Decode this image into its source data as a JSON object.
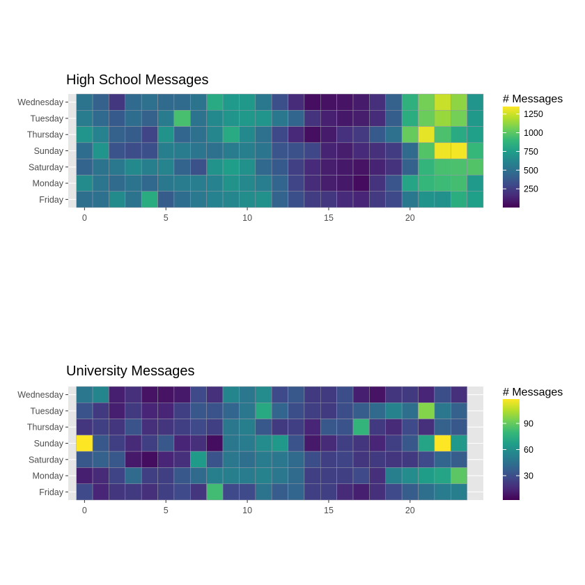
{
  "colormap": [
    "#440154",
    "#482878",
    "#3e4989",
    "#31688e",
    "#26828e",
    "#1f9e89",
    "#35b779",
    "#6ece58",
    "#b5de2b",
    "#fde725"
  ],
  "panel_bg": "#e6e6e6",
  "chart_data": [
    {
      "type": "heatmap",
      "title": "High School Messages",
      "xlabel": "",
      "ylabel": "",
      "x_ticks": [
        0,
        5,
        10,
        15,
        20
      ],
      "xlim": [
        -1,
        24.5
      ],
      "y": [
        "Wednesday",
        "Tuesday",
        "Thursday",
        "Sunday",
        "Saturday",
        "Monday",
        "Friday"
      ],
      "legend": {
        "title": "# Messages",
        "breaks": [
          1250,
          1000,
          750,
          500,
          250
        ],
        "min": 0,
        "max": 1350,
        "position": "right"
      },
      "values": [
        [
          520,
          420,
          220,
          460,
          500,
          470,
          470,
          520,
          820,
          730,
          720,
          540,
          330,
          170,
          50,
          60,
          70,
          100,
          180,
          420,
          860,
          1060,
          1240,
          1120,
          700
        ],
        [
          560,
          460,
          380,
          480,
          420,
          560,
          950,
          520,
          640,
          700,
          720,
          700,
          540,
          440,
          200,
          120,
          90,
          110,
          170,
          400,
          840,
          1040,
          1140,
          1060,
          720
        ],
        [
          700,
          600,
          420,
          390,
          280,
          690,
          440,
          500,
          620,
          820,
          640,
          500,
          300,
          150,
          50,
          100,
          190,
          230,
          380,
          500,
          1030,
          1300,
          960,
          820,
          760
        ],
        [
          480,
          700,
          350,
          320,
          330,
          580,
          560,
          530,
          500,
          560,
          580,
          530,
          360,
          340,
          290,
          130,
          110,
          160,
          180,
          240,
          470,
          980,
          1320,
          1330,
          900
        ],
        [
          430,
          520,
          540,
          640,
          580,
          610,
          430,
          340,
          690,
          750,
          680,
          450,
          380,
          260,
          160,
          110,
          90,
          70,
          130,
          200,
          420,
          880,
          950,
          960,
          980
        ],
        [
          650,
          530,
          470,
          520,
          450,
          540,
          560,
          570,
          600,
          690,
          630,
          570,
          440,
          280,
          170,
          110,
          90,
          40,
          200,
          360,
          790,
          890,
          920,
          940,
          730
        ],
        [
          490,
          500,
          650,
          520,
          830,
          390,
          480,
          550,
          600,
          620,
          660,
          680,
          430,
          330,
          240,
          220,
          160,
          140,
          230,
          300,
          540,
          690,
          680,
          840,
          760
        ]
      ]
    },
    {
      "type": "heatmap",
      "title": "University Messages",
      "xlabel": "",
      "ylabel": "",
      "x_ticks": [
        0,
        5,
        10,
        15,
        20
      ],
      "xlim": [
        -1,
        24.5
      ],
      "y": [
        "Wednesday",
        "Tuesday",
        "Thursday",
        "Sunday",
        "Saturday",
        "Monday",
        "Friday"
      ],
      "legend": {
        "title": "# Messages",
        "breaks": [
          90,
          60,
          30
        ],
        "min": 2,
        "max": 118,
        "position": "right"
      },
      "values": [
        [
          48,
          55,
          12,
          18,
          8,
          8,
          10,
          28,
          18,
          55,
          48,
          58,
          28,
          34,
          22,
          22,
          30,
          12,
          8,
          20,
          22,
          14,
          30,
          18
        ],
        [
          32,
          22,
          12,
          22,
          14,
          14,
          24,
          34,
          32,
          40,
          48,
          72,
          40,
          30,
          24,
          22,
          30,
          36,
          42,
          54,
          44,
          96,
          48,
          38
        ],
        [
          20,
          24,
          20,
          32,
          18,
          20,
          24,
          28,
          24,
          48,
          52,
          34,
          22,
          24,
          14,
          34,
          32,
          78,
          22,
          16,
          28,
          18,
          38,
          34
        ],
        [
          118,
          34,
          24,
          16,
          24,
          34,
          14,
          18,
          6,
          48,
          50,
          58,
          64,
          32,
          10,
          16,
          24,
          20,
          14,
          24,
          34,
          70,
          118,
          64
        ],
        [
          34,
          38,
          34,
          10,
          6,
          14,
          18,
          65,
          32,
          48,
          44,
          50,
          48,
          42,
          30,
          24,
          26,
          20,
          22,
          20,
          22,
          28,
          40,
          36
        ],
        [
          12,
          16,
          26,
          42,
          24,
          24,
          34,
          42,
          52,
          52,
          50,
          54,
          48,
          42,
          24,
          24,
          24,
          28,
          18,
          52,
          58,
          66,
          70,
          88
        ],
        [
          28,
          14,
          20,
          22,
          18,
          24,
          28,
          20,
          82,
          28,
          28,
          46,
          36,
          40,
          24,
          24,
          16,
          12,
          18,
          28,
          36,
          44,
          50,
          52
        ]
      ]
    }
  ]
}
